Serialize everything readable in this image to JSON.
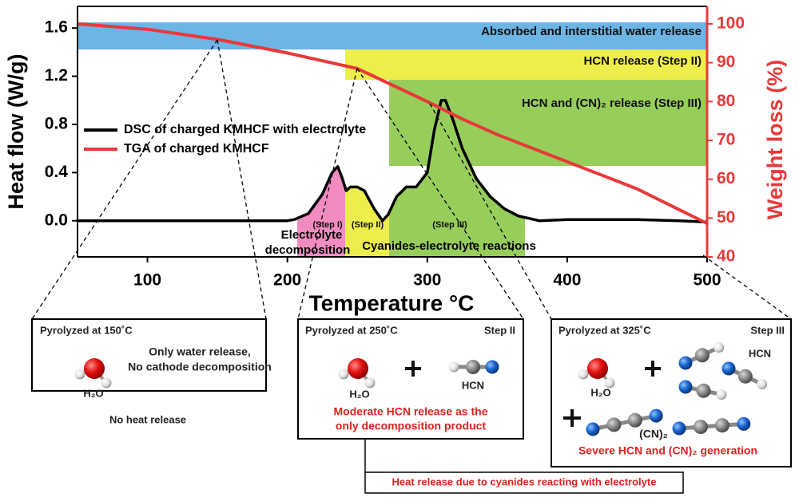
{
  "chart_data": {
    "type": "line",
    "xlabel": "Temperature °C",
    "ylabel": "Heat flow (W/g)",
    "y2label": "Weight loss (%)",
    "xlim": [
      50,
      500
    ],
    "xticks": [
      100,
      200,
      300,
      400,
      500
    ],
    "ylim": [
      -0.3,
      1.78
    ],
    "yticks": [
      {
        "value": 0,
        "label": "0.0"
      },
      0.4,
      0.8,
      1.2,
      1.6
    ],
    "y2lim": [
      40,
      104.5
    ],
    "y2ticks": [
      40,
      50,
      60,
      70,
      80,
      90,
      100
    ],
    "y2color": "#e8393a",
    "series": [
      {
        "name": "DSC of charged KMHCF with electrolyte",
        "color": "#000000",
        "x": [
          50,
          100,
          150,
          200,
          205,
          215,
          225,
          232,
          236,
          239,
          242,
          245,
          250,
          255,
          262,
          268,
          272,
          278,
          285,
          292,
          300,
          305,
          310,
          313,
          318,
          325,
          335,
          345,
          355,
          365,
          380,
          400,
          450,
          480,
          500
        ],
        "values": [
          0,
          0,
          0,
          0,
          0.01,
          0.06,
          0.22,
          0.4,
          0.45,
          0.36,
          0.25,
          0.28,
          0.28,
          0.25,
          0.1,
          0,
          0.05,
          0.2,
          0.28,
          0.28,
          0.4,
          0.75,
          1.0,
          1.0,
          0.85,
          0.6,
          0.35,
          0.2,
          0.1,
          0.04,
          0,
          0.01,
          0.01,
          0,
          -0.01
        ]
      },
      {
        "name": "TGA of charged KMHCF",
        "color": "#e8393a",
        "axis": "y2",
        "x": [
          50,
          100,
          150,
          200,
          250,
          300,
          325,
          350,
          400,
          450,
          500
        ],
        "values": [
          100,
          98.6,
          96,
          92.5,
          88.5,
          80,
          75.5,
          71.5,
          64.5,
          57.5,
          48.6
        ]
      }
    ],
    "bands": [
      "Absorbed and interstitial water release",
      "HCN release (Step II)",
      "HCN and (CN)₂ release (Step III)"
    ],
    "step_labels": [
      "(Step I)",
      "(Step II)",
      "(Step III)"
    ],
    "region_labels": [
      "Electrolyte",
      "decomposition",
      "Cyanides-electrolyte reactions"
    ]
  },
  "panels": [
    {
      "title": "Pyrolyzed at 150˚C",
      "text": [
        "Only water release,",
        "No cathode decomposition"
      ],
      "labels": [
        "H₂O"
      ],
      "note": [
        "No heat release"
      ]
    },
    {
      "title": "Pyrolyzed at 250˚C",
      "step": "Step II",
      "labels": [
        "H₂O",
        "HCN"
      ],
      "note": [
        "Moderate HCN release as the",
        "only decomposition product"
      ]
    },
    {
      "title": "Pyrolyzed at 325˚C",
      "step": "Step III",
      "labels": [
        "H₂O",
        "HCN",
        "(CN)₂"
      ],
      "note": [
        "Severe HCN and (CN)₂ generation"
      ]
    }
  ],
  "footer": "Heat release due to cyanides reacting with electrolyte"
}
